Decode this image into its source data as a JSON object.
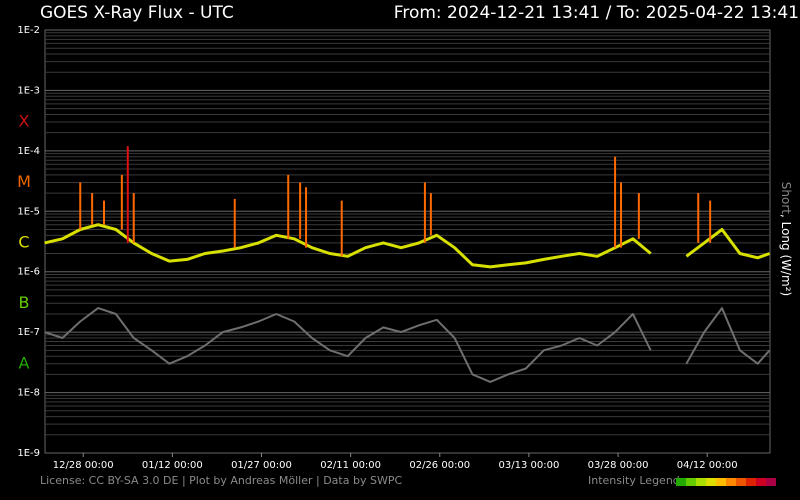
{
  "header": {
    "title": "GOES X-Ray Flux - UTC",
    "range": "From: 2024-12-21 13:41  /  To: 2025-04-22 13:41"
  },
  "footer": {
    "license": "License: CC BY-SA 3.0 DE | Plot by Andreas Möller | Data by SWPC",
    "legend_label": "Intensity Legend",
    "legend_colors": [
      "#22aa00",
      "#66cc00",
      "#aadd00",
      "#dddd00",
      "#ffbb00",
      "#ff8800",
      "#ee5500",
      "#dd2200",
      "#cc0022",
      "#aa0044"
    ]
  },
  "chart_data": {
    "type": "line",
    "title": "GOES X-Ray Flux - UTC",
    "ylabel_short": "Short",
    "ylabel_long": ", Long (W/m²)",
    "yscale": "log",
    "ylim": [
      1e-09,
      0.01
    ],
    "y_tick_labels": [
      "1E-2",
      "1E-3",
      "1E-4",
      "1E-5",
      "1E-6",
      "1E-7",
      "1E-8",
      "1E-9"
    ],
    "y_tick_exponents": [
      -2,
      -3,
      -4,
      -5,
      -6,
      -7,
      -8,
      -9
    ],
    "flare_classes": [
      {
        "label": "X",
        "color": "#cc1111"
      },
      {
        "label": "M",
        "color": "#ee6600"
      },
      {
        "label": "C",
        "color": "#dddd00"
      },
      {
        "label": "B",
        "color": "#66cc00"
      },
      {
        "label": "A",
        "color": "#22aa00"
      }
    ],
    "x_start": "2024-12-21 13:41",
    "x_end": "2025-04-22 13:41",
    "x_tick_labels": [
      "12/28 00:00",
      "01/12 00:00",
      "01/27 00:00",
      "02/11 00:00",
      "02/26 00:00",
      "03/13 00:00",
      "03/28 00:00",
      "04/12 00:00"
    ],
    "x_tick_dates": [
      "2024-12-28T00:00",
      "2025-01-12T00:00",
      "2025-01-27T00:00",
      "2025-02-11T00:00",
      "2025-02-26T00:00",
      "2025-03-13T00:00",
      "2025-03-28T00:00",
      "2025-04-12T00:00"
    ],
    "gaps": [
      [
        "2025-04-04T00:00",
        "2025-04-07T12:00"
      ]
    ],
    "series": [
      {
        "name": "Long",
        "dates": [
          "2024-12-21",
          "2024-12-24",
          "2024-12-27",
          "2024-12-30",
          "2025-01-02",
          "2025-01-05",
          "2025-01-08",
          "2025-01-11",
          "2025-01-14",
          "2025-01-17",
          "2025-01-20",
          "2025-01-23",
          "2025-01-26",
          "2025-01-29",
          "2025-02-01",
          "2025-02-04",
          "2025-02-07",
          "2025-02-10",
          "2025-02-13",
          "2025-02-16",
          "2025-02-19",
          "2025-02-22",
          "2025-02-25",
          "2025-02-28",
          "2025-03-03",
          "2025-03-06",
          "2025-03-09",
          "2025-03-12",
          "2025-03-15",
          "2025-03-18",
          "2025-03-21",
          "2025-03-24",
          "2025-03-27",
          "2025-03-30",
          "2025-04-02",
          "2025-04-08",
          "2025-04-11",
          "2025-04-14",
          "2025-04-17",
          "2025-04-20",
          "2025-04-22"
        ],
        "values": [
          3e-06,
          3.5e-06,
          5e-06,
          6e-06,
          5e-06,
          3e-06,
          2e-06,
          1.5e-06,
          1.6e-06,
          2e-06,
          2.2e-06,
          2.5e-06,
          3e-06,
          4e-06,
          3.5e-06,
          2.5e-06,
          2e-06,
          1.8e-06,
          2.5e-06,
          3e-06,
          2.5e-06,
          3e-06,
          4e-06,
          2.5e-06,
          1.3e-06,
          1.2e-06,
          1.3e-06,
          1.4e-06,
          1.6e-06,
          1.8e-06,
          2e-06,
          1.8e-06,
          2.5e-06,
          3.5e-06,
          2e-06,
          1.8e-06,
          3e-06,
          5e-06,
          2e-06,
          1.7e-06,
          2e-06
        ]
      },
      {
        "name": "Short",
        "dates": [
          "2024-12-21",
          "2024-12-24",
          "2024-12-27",
          "2024-12-30",
          "2025-01-02",
          "2025-01-05",
          "2025-01-08",
          "2025-01-11",
          "2025-01-14",
          "2025-01-17",
          "2025-01-20",
          "2025-01-23",
          "2025-01-26",
          "2025-01-29",
          "2025-02-01",
          "2025-02-04",
          "2025-02-07",
          "2025-02-10",
          "2025-02-13",
          "2025-02-16",
          "2025-02-19",
          "2025-02-22",
          "2025-02-25",
          "2025-02-28",
          "2025-03-03",
          "2025-03-06",
          "2025-03-09",
          "2025-03-12",
          "2025-03-15",
          "2025-03-18",
          "2025-03-21",
          "2025-03-24",
          "2025-03-27",
          "2025-03-30",
          "2025-04-02",
          "2025-04-08",
          "2025-04-11",
          "2025-04-14",
          "2025-04-17",
          "2025-04-20",
          "2025-04-22"
        ],
        "values": [
          1e-07,
          8e-08,
          1.5e-07,
          2.5e-07,
          2e-07,
          8e-08,
          5e-08,
          3e-08,
          4e-08,
          6e-08,
          1e-07,
          1.2e-07,
          1.5e-07,
          2e-07,
          1.5e-07,
          8e-08,
          5e-08,
          4e-08,
          8e-08,
          1.2e-07,
          1e-07,
          1.3e-07,
          1.6e-07,
          8e-08,
          2e-08,
          1.5e-08,
          2e-08,
          2.5e-08,
          5e-08,
          6e-08,
          8e-08,
          6e-08,
          1e-07,
          2e-07,
          5e-08,
          3e-08,
          1e-07,
          2.5e-07,
          5e-08,
          3e-08,
          5e-08
        ]
      }
    ],
    "peaks": [
      {
        "date": "2024-12-27",
        "value": 3e-05
      },
      {
        "date": "2024-12-29",
        "value": 2e-05
      },
      {
        "date": "2024-12-31",
        "value": 1.5e-05
      },
      {
        "date": "2025-01-03",
        "value": 4e-05
      },
      {
        "date": "2025-01-04",
        "value": 0.00012
      },
      {
        "date": "2025-01-05",
        "value": 2e-05
      },
      {
        "date": "2025-01-22",
        "value": 1.6e-05
      },
      {
        "date": "2025-01-31",
        "value": 4e-05
      },
      {
        "date": "2025-02-02",
        "value": 3e-05
      },
      {
        "date": "2025-02-03",
        "value": 2.5e-05
      },
      {
        "date": "2025-02-09",
        "value": 1.5e-05
      },
      {
        "date": "2025-02-23",
        "value": 3e-05
      },
      {
        "date": "2025-02-24",
        "value": 2e-05
      },
      {
        "date": "2025-03-27",
        "value": 8e-05
      },
      {
        "date": "2025-03-28",
        "value": 3e-05
      },
      {
        "date": "2025-03-31",
        "value": 2e-05
      },
      {
        "date": "2025-04-10",
        "value": 2e-05
      },
      {
        "date": "2025-04-12",
        "value": 1.5e-05
      }
    ],
    "grid": true
  }
}
